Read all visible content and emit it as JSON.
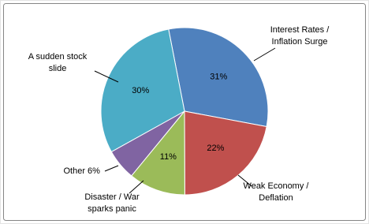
{
  "chart_data": {
    "type": "pie",
    "categories": [
      "Interest Rates / Inflation Surge",
      "Weak Economy / Deflation",
      "Disaster / War sparks panic",
      "Other",
      "A sudden stock slide"
    ],
    "values": [
      31,
      22,
      11,
      6,
      30
    ],
    "value_labels": [
      "31%",
      "22%",
      "11%",
      "6%",
      "30%"
    ],
    "colors": [
      "#4f81bd",
      "#c0504d",
      "#9bbb59",
      "#8064a2",
      "#4bacc6"
    ]
  }
}
